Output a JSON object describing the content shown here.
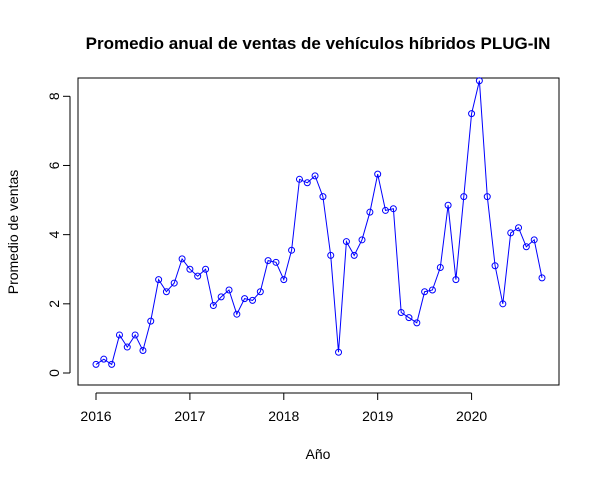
{
  "chart_data": {
    "type": "line",
    "title": "Promedio anual de ventas de vehículos híbridos PLUG-IN",
    "xlabel": "Año",
    "ylabel": "Promedio de ventas",
    "xlim": [
      2016,
      2020.75
    ],
    "ylim": [
      0,
      8.5
    ],
    "x_ticks": [
      2016,
      2017,
      2018,
      2019,
      2020
    ],
    "y_ticks": [
      0,
      2,
      4,
      6,
      8
    ],
    "grid": false,
    "series": [
      {
        "color": "#0000ff",
        "marker": "open-circle",
        "x": [
          2016.0,
          2016.083,
          2016.167,
          2016.25,
          2016.333,
          2016.417,
          2016.5,
          2016.583,
          2016.667,
          2016.75,
          2016.833,
          2016.917,
          2017.0,
          2017.083,
          2017.167,
          2017.25,
          2017.333,
          2017.417,
          2017.5,
          2017.583,
          2017.667,
          2017.75,
          2017.833,
          2017.917,
          2018.0,
          2018.083,
          2018.167,
          2018.25,
          2018.333,
          2018.417,
          2018.5,
          2018.583,
          2018.667,
          2018.75,
          2018.833,
          2018.917,
          2019.0,
          2019.083,
          2019.167,
          2019.25,
          2019.333,
          2019.417,
          2019.5,
          2019.583,
          2019.667,
          2019.75,
          2019.833,
          2019.917,
          2020.0,
          2020.083,
          2020.167,
          2020.25,
          2020.333,
          2020.417,
          2020.5,
          2020.583,
          2020.667,
          2020.75
        ],
        "y": [
          0.25,
          0.4,
          0.25,
          1.1,
          0.75,
          1.1,
          0.65,
          1.5,
          2.7,
          2.35,
          2.6,
          3.3,
          3.0,
          2.8,
          3.0,
          1.95,
          2.2,
          2.4,
          1.7,
          2.15,
          2.1,
          2.35,
          3.25,
          3.2,
          2.7,
          3.55,
          5.6,
          5.5,
          5.7,
          5.1,
          3.4,
          0.6,
          3.8,
          3.4,
          3.85,
          4.65,
          5.75,
          4.7,
          4.75,
          1.75,
          1.6,
          1.45,
          2.35,
          2.4,
          3.05,
          4.85,
          2.7,
          5.1,
          7.5,
          8.45,
          5.1,
          3.1,
          2.0,
          4.05,
          4.2,
          3.65,
          3.85,
          2.75
        ]
      }
    ]
  }
}
